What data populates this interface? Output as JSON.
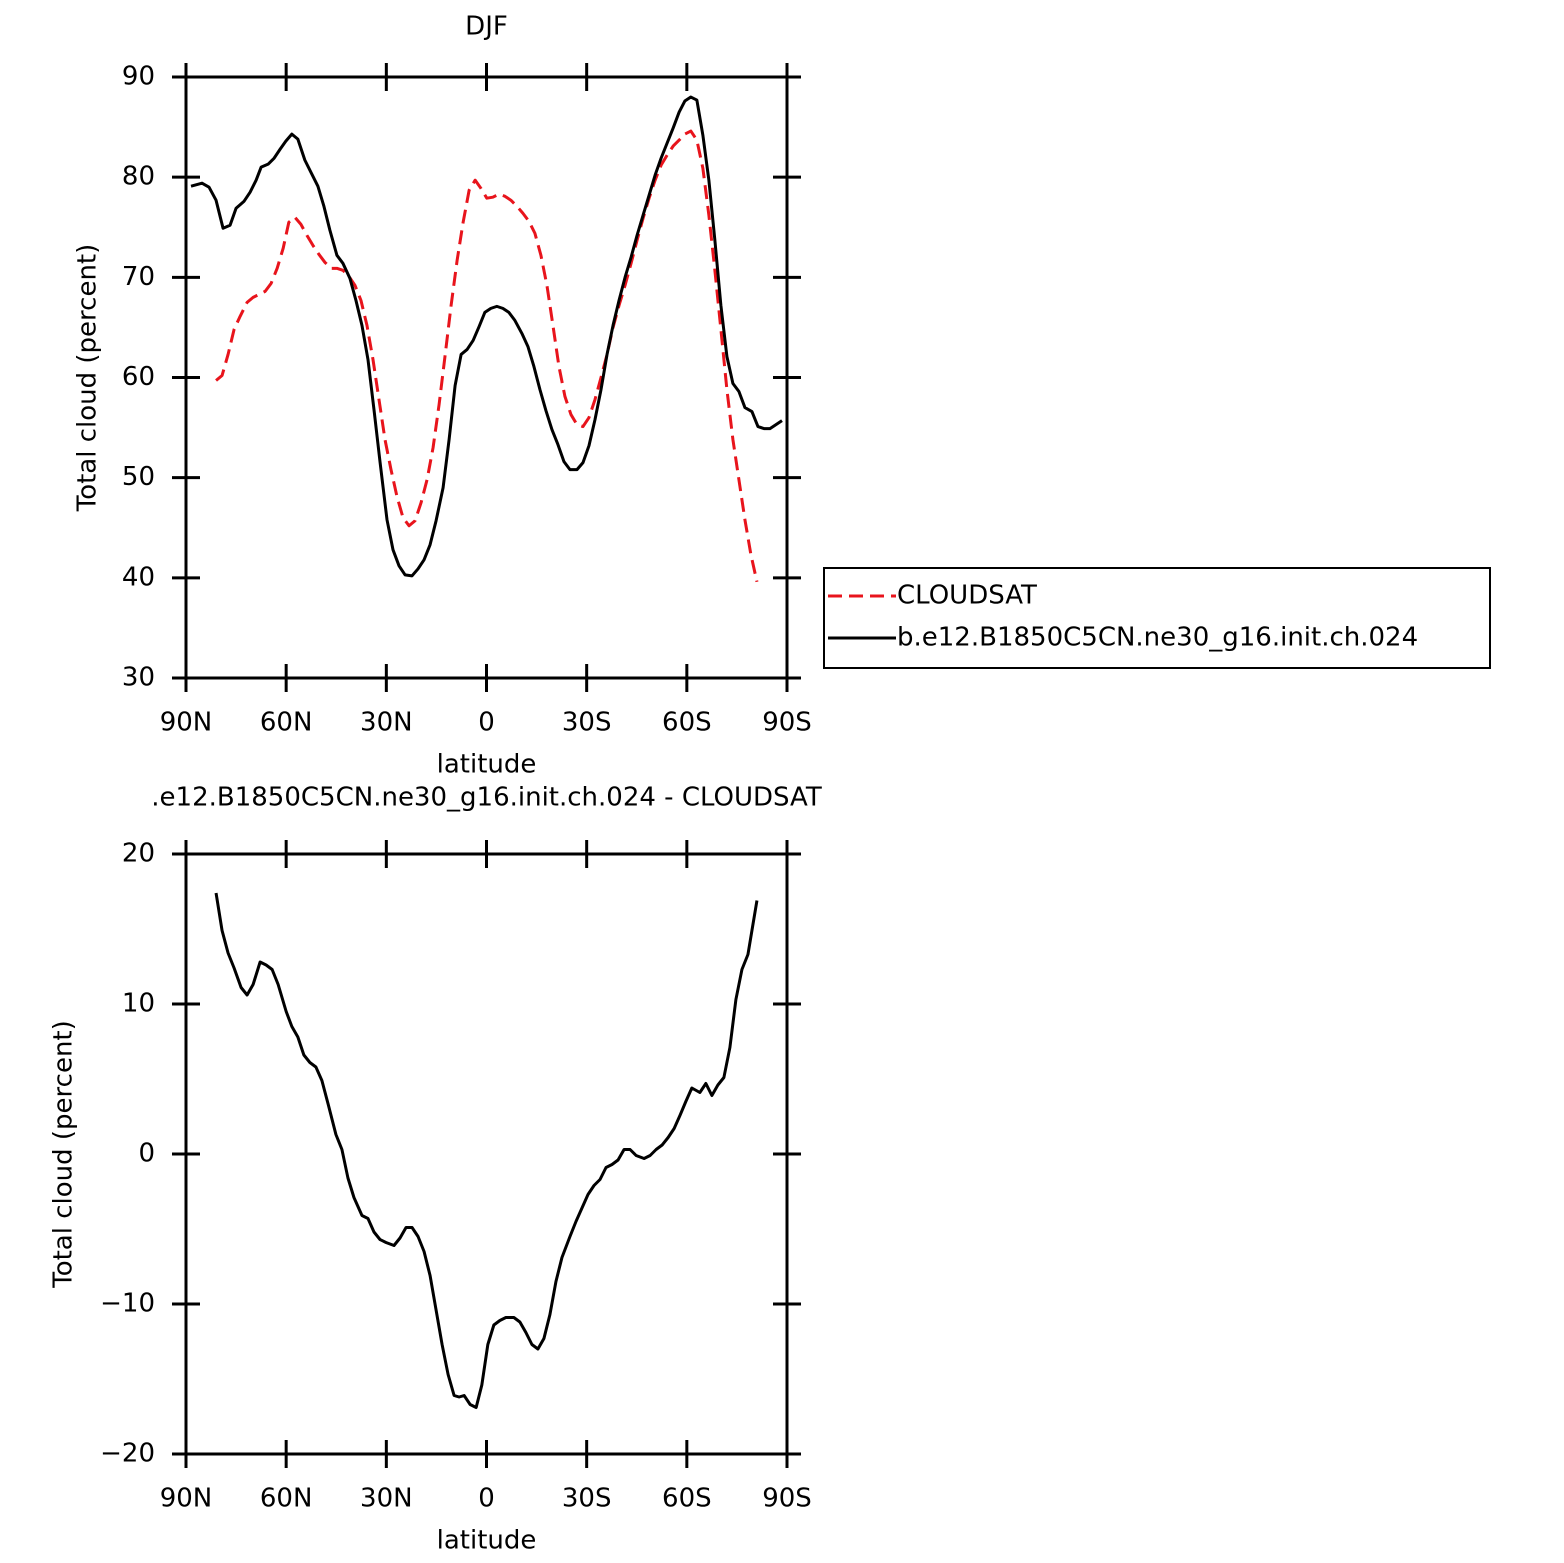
{
  "chart_data": [
    {
      "type": "line",
      "title": "DJF",
      "xlabel": "latitude",
      "ylabel": "Total cloud (percent)",
      "xlim": [
        90,
        -90
      ],
      "xticks": [
        {
          "value": 90,
          "label": "90N"
        },
        {
          "value": 60,
          "label": "60N"
        },
        {
          "value": 30,
          "label": "30N"
        },
        0,
        {
          "value": -30,
          "label": "30S"
        },
        {
          "value": -60,
          "label": "60S"
        },
        {
          "value": -90,
          "label": "90S"
        }
      ],
      "ylim": [
        30,
        90
      ],
      "yticks": [
        30,
        40,
        50,
        60,
        70,
        80,
        90
      ],
      "legend": "outside right",
      "series": [
        {
          "name": "CLOUDSAT",
          "color": "#e8141c",
          "dashed": true,
          "x": [
            81.0,
            79.2,
            77.4,
            75.6,
            73.8,
            71.7,
            69.9,
            68.1,
            66.3,
            64.5,
            62.7,
            60.9,
            59.2,
            57.4,
            55.6,
            53.8,
            52.0,
            50.2,
            48.4,
            46.6,
            44.8,
            43.0,
            41.2,
            39.4,
            37.6,
            35.8,
            34.0,
            32.2,
            30.4,
            28.6,
            26.8,
            25.0,
            23.2,
            21.4,
            19.6,
            17.8,
            16.0,
            14.2,
            12.4,
            10.6,
            8.8,
            7.0,
            5.2,
            3.4,
            1.7,
            -0.1,
            -1.9,
            -3.7,
            -5.5,
            -7.3,
            -9.1,
            -10.9,
            -12.7,
            -14.5,
            -16.3,
            -18.1,
            -19.9,
            -21.7,
            -23.5,
            -25.3,
            -27.1,
            -28.9,
            -30.7,
            -32.5,
            -34.3,
            -36.1,
            -37.9,
            -39.7,
            -41.5,
            -43.3,
            -45.1,
            -46.9,
            -48.7,
            -50.5,
            -52.3,
            -54.1,
            -55.9,
            -57.7,
            -59.4,
            -61.2,
            -63.0,
            -64.8,
            -66.6,
            -68.4,
            -70.2,
            -72.0,
            -73.8,
            -75.6,
            -77.4,
            -79.2,
            -81.0
          ],
          "values": [
            59.7,
            60.2,
            62.3,
            64.8,
            66.1,
            67.5,
            68.0,
            68.3,
            68.6,
            69.4,
            70.9,
            72.9,
            75.5,
            76.0,
            75.3,
            74.2,
            73.2,
            72.3,
            71.5,
            70.9,
            70.9,
            70.7,
            70.1,
            69.2,
            67.7,
            65.2,
            61.8,
            57.8,
            53.8,
            50.8,
            48.1,
            46.0,
            45.2,
            45.7,
            47.5,
            49.8,
            53.0,
            57.3,
            62.2,
            67.2,
            71.7,
            75.5,
            78.7,
            79.7,
            78.9,
            77.9,
            78.0,
            78.3,
            78.1,
            77.7,
            77.1,
            76.4,
            75.6,
            74.4,
            72.2,
            69.2,
            65.2,
            61.1,
            58.1,
            56.3,
            55.3,
            55.1,
            56.0,
            57.8,
            60.0,
            62.3,
            65.0,
            67.2,
            69.2,
            71.4,
            73.7,
            75.9,
            77.9,
            79.7,
            81.2,
            82.2,
            83.1,
            83.7,
            84.3,
            84.6,
            83.7,
            80.9,
            76.2,
            70.7,
            64.8,
            58.8,
            53.8,
            49.8,
            45.8,
            42.3,
            39.6
          ]
        },
        {
          "name": "b.e12.B1850C5CN.ne30_g16.init.ch.024",
          "color": "#000000",
          "dashed": false,
          "x": [
            88.5,
            85.2,
            83.1,
            81.0,
            78.9,
            76.8,
            75.0,
            72.6,
            70.8,
            69.0,
            67.5,
            65.4,
            63.6,
            61.8,
            60.1,
            58.3,
            56.5,
            54.4,
            52.3,
            50.5,
            48.7,
            46.9,
            44.8,
            43.0,
            40.9,
            39.1,
            37.3,
            35.5,
            33.7,
            31.9,
            29.8,
            28.0,
            26.2,
            24.4,
            22.3,
            20.5,
            18.7,
            16.9,
            15.1,
            13.0,
            11.2,
            9.4,
            7.6,
            5.8,
            4.0,
            2.2,
            0.5,
            -1.3,
            -3.1,
            -4.9,
            -6.7,
            -8.5,
            -10.6,
            -12.4,
            -14.2,
            -16.0,
            -17.8,
            -19.6,
            -21.4,
            -23.2,
            -25.0,
            -27.1,
            -28.9,
            -30.7,
            -32.5,
            -34.3,
            -36.1,
            -37.9,
            -39.7,
            -41.5,
            -43.3,
            -45.1,
            -46.9,
            -48.7,
            -50.5,
            -52.3,
            -54.1,
            -55.9,
            -57.7,
            -59.4,
            -61.2,
            -63.0,
            -64.8,
            -66.6,
            -68.4,
            -70.2,
            -72.0,
            -73.8,
            -75.6,
            -77.4,
            -79.5,
            -81.3,
            -83.1,
            -84.9,
            -86.7,
            -88.5
          ],
          "values": [
            79.1,
            79.4,
            79.0,
            77.7,
            74.9,
            75.2,
            76.9,
            77.6,
            78.5,
            79.7,
            81.0,
            81.3,
            81.9,
            82.8,
            83.6,
            84.3,
            83.8,
            81.7,
            80.3,
            79.1,
            77.1,
            74.7,
            72.2,
            71.4,
            69.9,
            67.7,
            65.2,
            61.8,
            56.8,
            51.6,
            45.8,
            42.8,
            41.2,
            40.3,
            40.2,
            40.9,
            41.8,
            43.3,
            45.7,
            49.0,
            53.8,
            59.2,
            62.3,
            62.8,
            63.7,
            65.1,
            66.5,
            66.9,
            67.1,
            66.9,
            66.5,
            65.7,
            64.4,
            63.1,
            61.1,
            58.8,
            56.7,
            54.8,
            53.3,
            51.6,
            50.8,
            50.8,
            51.5,
            53.2,
            55.8,
            58.8,
            62.3,
            65.2,
            67.7,
            70.0,
            72.0,
            74.2,
            76.2,
            78.2,
            80.2,
            81.9,
            83.4,
            84.9,
            86.5,
            87.6,
            88.0,
            87.7,
            84.2,
            79.7,
            73.7,
            67.2,
            62.1,
            59.4,
            58.6,
            57.0,
            56.6,
            55.1,
            54.9,
            54.9,
            55.3,
            55.7
          ]
        }
      ]
    },
    {
      "type": "line",
      "title": ".e12.B1850C5CN.ne30_g16.init.ch.024 - CLOUDSAT",
      "xlabel": "latitude",
      "ylabel": "Total cloud (percent)",
      "xlim": [
        90,
        -90
      ],
      "xticks": [
        {
          "value": 90,
          "label": "90N"
        },
        {
          "value": 60,
          "label": "60N"
        },
        {
          "value": 30,
          "label": "30N"
        },
        0,
        {
          "value": -30,
          "label": "30S"
        },
        {
          "value": -60,
          "label": "60S"
        },
        {
          "value": -90,
          "label": "90S"
        }
      ],
      "ylim": [
        -20,
        20
      ],
      "yticks": [
        -20,
        -10,
        0,
        10,
        20
      ],
      "series": [
        {
          "color": "#000000",
          "dashed": false,
          "x": [
            81.0,
            79.2,
            77.4,
            75.6,
            73.5,
            71.7,
            69.9,
            67.8,
            66.0,
            64.2,
            62.4,
            60.0,
            58.3,
            56.5,
            54.7,
            52.9,
            51.1,
            49.3,
            47.4,
            45.1,
            43.3,
            41.5,
            39.7,
            37.3,
            35.5,
            33.7,
            31.9,
            30.1,
            27.7,
            25.9,
            24.1,
            22.3,
            20.5,
            18.7,
            16.9,
            15.1,
            13.3,
            11.5,
            9.7,
            8.2,
            6.7,
            4.9,
            3.1,
            1.4,
            -0.4,
            -2.2,
            -4.0,
            -5.8,
            -8.2,
            -10.0,
            -11.8,
            -13.6,
            -15.4,
            -17.2,
            -19.0,
            -20.8,
            -22.6,
            -25.0,
            -26.8,
            -28.6,
            -30.4,
            -32.2,
            -34.0,
            -35.8,
            -37.6,
            -39.4,
            -41.2,
            -43.0,
            -44.8,
            -47.2,
            -49.0,
            -50.8,
            -52.6,
            -54.4,
            -56.2,
            -58.0,
            -59.7,
            -61.5,
            -63.9,
            -65.7,
            -67.5,
            -69.3,
            -71.1,
            -72.9,
            -74.7,
            -76.5,
            -78.3,
            -79.5,
            -81.0
          ],
          "values": [
            17.4,
            14.9,
            13.4,
            12.4,
            11.1,
            10.6,
            11.3,
            12.8,
            12.6,
            12.3,
            11.3,
            9.5,
            8.5,
            7.8,
            6.6,
            6.1,
            5.8,
            4.9,
            3.3,
            1.3,
            0.3,
            -1.6,
            -2.9,
            -4.1,
            -4.3,
            -5.2,
            -5.7,
            -5.9,
            -6.1,
            -5.6,
            -4.9,
            -4.9,
            -5.5,
            -6.5,
            -8.1,
            -10.4,
            -12.7,
            -14.7,
            -16.1,
            -16.2,
            -16.1,
            -16.7,
            -16.9,
            -15.4,
            -12.7,
            -11.4,
            -11.1,
            -10.9,
            -10.9,
            -11.2,
            -11.9,
            -12.7,
            -13.0,
            -12.3,
            -10.7,
            -8.5,
            -6.9,
            -5.5,
            -4.5,
            -3.6,
            -2.7,
            -2.1,
            -1.7,
            -0.9,
            -0.7,
            -0.4,
            0.3,
            0.3,
            -0.1,
            -0.3,
            -0.1,
            0.3,
            0.6,
            1.1,
            1.7,
            2.6,
            3.5,
            4.4,
            4.1,
            4.7,
            3.9,
            4.6,
            5.1,
            7.1,
            10.3,
            12.3,
            13.3,
            14.9,
            16.9
          ]
        }
      ]
    }
  ]
}
